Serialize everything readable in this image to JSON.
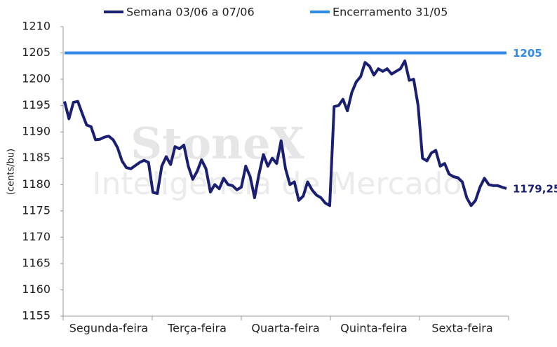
{
  "chart_data": {
    "type": "line",
    "watermark": [
      "StoneX",
      "Inteligência de Mercado"
    ],
    "y_label": "(cents/bu)",
    "categories": [
      null,
      null,
      null,
      null,
      null,
      null,
      null,
      null,
      null,
      null,
      "Segunda-feira",
      null,
      null,
      null,
      null,
      null,
      null,
      null,
      null,
      null,
      null,
      null,
      null,
      null,
      null,
      null,
      null,
      null,
      null,
      null,
      "Terça-feira",
      null,
      null,
      null,
      null,
      null,
      null,
      null,
      null,
      null,
      null,
      null,
      null,
      null,
      null,
      null,
      null,
      null,
      null,
      null,
      "Quarta-feira",
      null,
      null,
      null,
      null,
      null,
      null,
      null,
      null,
      null,
      null,
      null,
      null,
      null,
      null,
      null,
      null,
      null,
      null,
      null,
      "Quinta-feira",
      null,
      null,
      null,
      null,
      null,
      null,
      null,
      null,
      null,
      null,
      null,
      null,
      null,
      null,
      null,
      null,
      null,
      null,
      null,
      "Sexta-feira",
      null,
      null,
      null,
      null,
      null,
      null,
      null,
      null,
      null,
      null
    ],
    "series": [
      {
        "name": "Semana 03/06 a 07/06",
        "color": "#1a1f71",
        "end_label": "1179,25",
        "values": [
          1195.8,
          1192.5,
          1195.6,
          1195.8,
          1193.5,
          1191.3,
          1191.0,
          1188.5,
          1188.6,
          1189.0,
          1189.2,
          1188.5,
          1187.0,
          1184.5,
          1183.2,
          1183.0,
          1183.6,
          1184.2,
          1184.6,
          1184.2,
          1178.5,
          1178.3,
          1183.5,
          1185.3,
          1183.8,
          1187.2,
          1186.8,
          1187.5,
          1183.5,
          1181.0,
          1182.5,
          1184.7,
          1183.0,
          1178.6,
          1180.0,
          1179.2,
          1181.2,
          1180.0,
          1179.8,
          1179.0,
          1179.5,
          1183.5,
          1181.5,
          1177.5,
          1182.0,
          1185.7,
          1183.5,
          1185.0,
          1184.0,
          1188.3,
          1183.0,
          1180.0,
          1180.5,
          1177.0,
          1177.8,
          1180.5,
          1179.0,
          1178.0,
          1177.5,
          1176.5,
          1176.0,
          1194.8,
          1195.0,
          1196.2,
          1194.0,
          1197.5,
          1199.5,
          1200.5,
          1203.2,
          1202.5,
          1200.8,
          1202.0,
          1201.5,
          1202.0,
          1201.0,
          1201.5,
          1202.0,
          1203.5,
          1199.8,
          1200.0,
          1195.0,
          1185.0,
          1184.5,
          1186.0,
          1186.5,
          1183.5,
          1184.0,
          1182.0,
          1181.5,
          1181.3,
          1180.5,
          1177.5,
          1176.0,
          1177.0,
          1179.5,
          1181.2,
          1180.0,
          1179.8,
          1179.8,
          1179.5,
          1179.25
        ]
      },
      {
        "name": "Encerramento 31/05",
        "color": "#2e8ae6",
        "end_label": "1205",
        "values": [
          1205,
          1205,
          1205,
          1205,
          1205,
          1205,
          1205,
          1205,
          1205,
          1205,
          1205,
          1205,
          1205,
          1205,
          1205,
          1205,
          1205,
          1205,
          1205,
          1205,
          1205,
          1205,
          1205,
          1205,
          1205,
          1205,
          1205,
          1205,
          1205,
          1205,
          1205,
          1205,
          1205,
          1205,
          1205,
          1205,
          1205,
          1205,
          1205,
          1205,
          1205,
          1205,
          1205,
          1205,
          1205,
          1205,
          1205,
          1205,
          1205,
          1205,
          1205,
          1205,
          1205,
          1205,
          1205,
          1205,
          1205,
          1205,
          1205,
          1205,
          1205,
          1205,
          1205,
          1205,
          1205,
          1205,
          1205,
          1205,
          1205,
          1205,
          1205,
          1205,
          1205,
          1205,
          1205,
          1205,
          1205,
          1205,
          1205,
          1205,
          1205,
          1205,
          1205,
          1205,
          1205,
          1205,
          1205,
          1205,
          1205,
          1205,
          1205,
          1205,
          1205,
          1205,
          1205,
          1205,
          1205,
          1205,
          1205,
          1205,
          1205
        ]
      }
    ],
    "ylim": [
      1155,
      1210
    ],
    "yticks": [
      1155,
      1160,
      1165,
      1170,
      1175,
      1180,
      1185,
      1190,
      1195,
      1200,
      1205,
      1210
    ],
    "grid": false
  }
}
